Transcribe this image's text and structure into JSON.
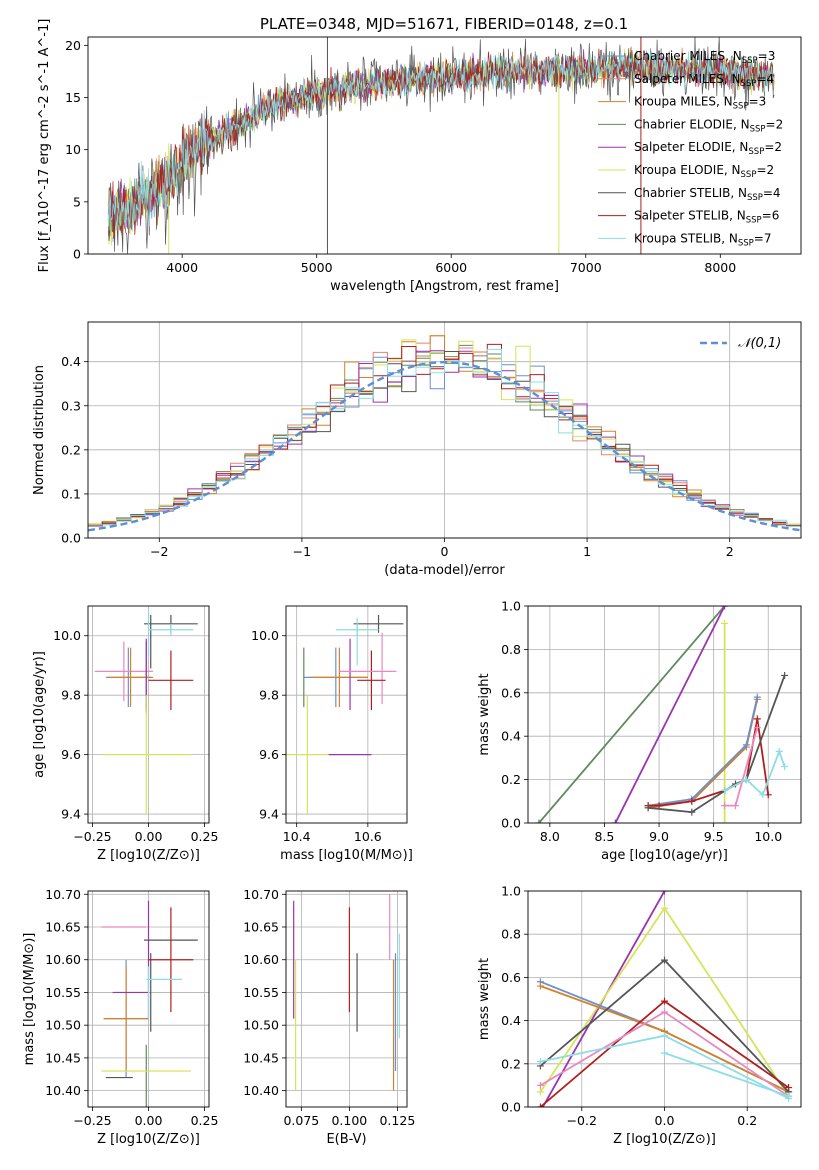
{
  "figure_title": "PLATE=0348, MJD=51671, FIBERID=0148, z=0.1",
  "chart_data": [
    {
      "id": "spectrum",
      "type": "line",
      "title": "PLATE=0348, MJD=51671, FIBERID=0148, z=0.1",
      "xlabel": "wavelength [Angstrom, rest frame]",
      "ylabel": "Flux [f_λ10^-17 erg cm^-2 s^-1 A^-1]",
      "xlim": [
        3300,
        8600
      ],
      "ylim": [
        0,
        20.8
      ],
      "xticks": [
        4000,
        5000,
        6000,
        7000,
        8000
      ],
      "yticks": [
        0,
        5,
        10,
        15,
        20
      ],
      "grid": false,
      "legend_position": "top-right",
      "continuum_x": [
        3450,
        3600,
        3800,
        3900,
        4000,
        4100,
        4300,
        4500,
        4700,
        4900,
        5100,
        5300,
        5500,
        5700,
        6000,
        6300,
        6600,
        6900,
        7200,
        7500,
        7800,
        8100,
        8400
      ],
      "continuum_y": [
        3.5,
        4.5,
        6.0,
        7.5,
        9.0,
        10.0,
        11.5,
        13.0,
        14.5,
        15.2,
        15.7,
        16.1,
        16.4,
        16.7,
        17.0,
        17.3,
        17.6,
        17.7,
        17.8,
        17.8,
        17.6,
        17.4,
        17.0
      ],
      "series": [
        {
          "name": "Chabrier MILES, N_SSP=3",
          "label_main": "Chabrier MILES, N",
          "label_sub": "SSP",
          "label_tail": "=3",
          "color": "#6b8fcf"
        },
        {
          "name": "Salpeter MILES, N_SSP=4",
          "label_main": "Salpeter MILES, N",
          "label_sub": "SSP",
          "label_tail": "=4",
          "color": "#e8836f"
        },
        {
          "name": "Kroupa MILES, N_SSP=3",
          "label_main": "Kroupa MILES, N",
          "label_sub": "SSP",
          "label_tail": "=3",
          "color": "#d4822a"
        },
        {
          "name": "Chabrier ELODIE, N_SSP=2",
          "label_main": "Chabrier ELODIE, N",
          "label_sub": "SSP",
          "label_tail": "=2",
          "color": "#5f8a5f"
        },
        {
          "name": "Salpeter ELODIE, N_SSP=2",
          "label_main": "Salpeter ELODIE, N",
          "label_sub": "SSP",
          "label_tail": "=2",
          "color": "#9b34b0"
        },
        {
          "name": "Kroupa ELODIE, N_SSP=2",
          "label_main": "Kroupa ELODIE, N",
          "label_sub": "SSP",
          "label_tail": "=2",
          "color": "#d6e45a"
        },
        {
          "name": "Chabrier STELIB, N_SSP=4",
          "label_main": "Chabrier STELIB, N",
          "label_sub": "SSP",
          "label_tail": "=4",
          "color": "#555555"
        },
        {
          "name": "Salpeter STELIB, N_SSP=6",
          "label_main": "Salpeter STELIB, N",
          "label_sub": "SSP",
          "label_tail": "=6",
          "color": "#b01e1e"
        },
        {
          "name": "Kroupa STELIB, N_SSP=7",
          "label_main": "Kroupa STELIB, N",
          "label_sub": "SSP",
          "label_tail": "=7",
          "color": "#8cdde6"
        }
      ],
      "spikes": [
        {
          "x": 5080,
          "ymin": 0,
          "ymax": 20.8,
          "color": "#555555"
        },
        {
          "x": 6800,
          "ymin": 0,
          "ymax": 19,
          "color": "#d6e45a"
        },
        {
          "x": 7410,
          "ymin": 0,
          "ymax": 20.8,
          "color": "#b01e1e"
        },
        {
          "x": 3900,
          "ymin": 0,
          "ymax": 6,
          "color": "#d6e45a"
        }
      ]
    },
    {
      "id": "residuals",
      "type": "histogram",
      "xlabel": "(data-model)/error",
      "ylabel": "Normed distribution",
      "xlim": [
        -2.5,
        2.5
      ],
      "ylim": [
        0,
        0.49
      ],
      "xticks": [
        -2,
        -1,
        0,
        1,
        2
      ],
      "yticks": [
        0.0,
        0.1,
        0.2,
        0.3,
        0.4
      ],
      "grid": true,
      "legend_position": "top-right",
      "reference_label": "𝒩(0,1)",
      "reference_color": "#5b8fd6"
    },
    {
      "id": "age_vs_Z",
      "type": "errorbar",
      "xlabel": "Z [log10(Z/Z⊙)]",
      "ylabel": "age [log10(age/yr)]",
      "xlim": [
        -0.27,
        0.27
      ],
      "ylim": [
        9.37,
        10.1
      ],
      "xticks": [
        -0.25,
        0.0,
        0.25
      ],
      "xtick_labels": [
        "−0.25",
        "0.00",
        "0.25"
      ],
      "yticks": [
        9.4,
        9.6,
        9.8,
        10.0
      ],
      "grid": true,
      "points": [
        {
          "x": -0.09,
          "xerr": 0.1,
          "y": 9.86,
          "yerr": 0.1,
          "color": "#6b8fcf"
        },
        {
          "x": -0.11,
          "xerr": 0.13,
          "y": 9.88,
          "yerr": 0.1,
          "color": "#e889c0"
        },
        {
          "x": -0.08,
          "xerr": 0.1,
          "y": 9.86,
          "yerr": 0.1,
          "color": "#d4822a"
        },
        {
          "x": -0.01,
          "xerr": 0.0,
          "y": 9.86,
          "yerr": 0.12,
          "color": "#5f8a5f"
        },
        {
          "x": -0.01,
          "xerr": 0.0,
          "y": 9.87,
          "yerr": 0.12,
          "color": "#9b34b0"
        },
        {
          "x": -0.01,
          "xerr": 0.2,
          "y": 9.6,
          "yerr": 0.2,
          "color": "#d6e45a"
        },
        {
          "x": 0.0,
          "xerr": 0.0,
          "y": 9.6,
          "yerr": 0.0,
          "color": "#555555"
        },
        {
          "x": 0.1,
          "xerr": 0.12,
          "y": 10.04,
          "yerr": 0.03,
          "color": "#555555"
        },
        {
          "x": 0.01,
          "xerr": 0.0,
          "y": 9.98,
          "yerr": 0.09,
          "color": "#555555"
        },
        {
          "x": 0.1,
          "xerr": 0.1,
          "y": 9.85,
          "yerr": 0.1,
          "color": "#b01e1e"
        },
        {
          "x": 0.1,
          "xerr": 0.1,
          "y": 10.02,
          "yerr": 0.02,
          "color": "#8cdde6"
        },
        {
          "x": 0.0,
          "xerr": 0.0,
          "y": 10.0,
          "yerr": 0.08,
          "color": "#8cdde6"
        }
      ]
    },
    {
      "id": "age_vs_mass",
      "type": "errorbar",
      "xlabel": "mass [log10(M/M⊙)]",
      "ylabel": "",
      "xlim": [
        10.37,
        10.71
      ],
      "ylim": [
        9.37,
        10.1
      ],
      "xticks": [
        10.4,
        10.6
      ],
      "xtick_labels": [
        "10.4",
        "10.6"
      ],
      "yticks": [
        9.4,
        9.6,
        9.8,
        10.0
      ],
      "grid": true,
      "points": [
        {
          "x": 10.51,
          "xerr": 0.09,
          "y": 9.86,
          "yerr": 0.1,
          "color": "#6b8fcf"
        },
        {
          "x": 10.52,
          "xerr": 0.08,
          "y": 9.86,
          "yerr": 0.1,
          "color": "#d4822a"
        },
        {
          "x": 10.42,
          "xerr": 0.0,
          "y": 9.86,
          "yerr": 0.1,
          "color": "#5f8a5f"
        },
        {
          "x": 10.55,
          "xerr": 0.0,
          "y": 9.87,
          "yerr": 0.12,
          "color": "#9b34b0"
        },
        {
          "x": 10.43,
          "xerr": 0.06,
          "y": 9.6,
          "yerr": 0.2,
          "color": "#d6e45a"
        },
        {
          "x": 10.55,
          "xerr": 0.06,
          "y": 9.6,
          "yerr": 0.0,
          "color": "#9b34b0"
        },
        {
          "x": 10.63,
          "xerr": 0.07,
          "y": 10.04,
          "yerr": 0.03,
          "color": "#555555"
        },
        {
          "x": 10.64,
          "xerr": 0.0,
          "y": 9.89,
          "yerr": 0.12,
          "color": "#e889c0"
        },
        {
          "x": 10.61,
          "xerr": 0.04,
          "y": 9.85,
          "yerr": 0.1,
          "color": "#b01e1e"
        },
        {
          "x": 10.57,
          "xerr": 0.06,
          "y": 10.02,
          "yerr": 0.02,
          "color": "#8cdde6"
        },
        {
          "x": 10.57,
          "xerr": 0.0,
          "y": 9.98,
          "yerr": 0.08,
          "color": "#8cdde6"
        },
        {
          "x": 10.6,
          "xerr": 0.08,
          "y": 9.88,
          "yerr": 0.0,
          "color": "#e889c0"
        }
      ]
    },
    {
      "id": "massweight_vs_age",
      "type": "line",
      "xlabel": "age [log10(age/yr)]",
      "ylabel": "mass weight",
      "xlim": [
        7.8,
        10.3
      ],
      "ylim": [
        0,
        1.0
      ],
      "xticks": [
        8.0,
        8.5,
        9.0,
        9.5,
        10.0
      ],
      "yticks": [
        0.0,
        0.2,
        0.4,
        0.6,
        0.8,
        1.0
      ],
      "grid": true,
      "series": [
        {
          "color": "#5f8a5f",
          "x": [
            7.9,
            9.6
          ],
          "y": [
            0.0,
            1.0
          ]
        },
        {
          "color": "#9b34b0",
          "x": [
            8.6,
            9.6
          ],
          "y": [
            0.0,
            1.0
          ]
        },
        {
          "color": "#d6e45a",
          "x": [
            9.6,
            9.6
          ],
          "y": [
            0.0,
            0.92
          ]
        },
        {
          "color": "#d4822a",
          "x": [
            8.9,
            9.3,
            9.8,
            9.9
          ],
          "y": [
            0.07,
            0.1,
            0.35,
            0.57
          ]
        },
        {
          "color": "#6b8fcf",
          "x": [
            8.9,
            9.3,
            9.8,
            9.9
          ],
          "y": [
            0.08,
            0.11,
            0.36,
            0.58
          ]
        },
        {
          "color": "#b01e1e",
          "x": [
            8.9,
            9.0,
            9.3,
            9.6,
            9.8,
            9.9,
            10.0
          ],
          "y": [
            0.08,
            0.08,
            0.1,
            0.15,
            0.2,
            0.48,
            0.13
          ]
        },
        {
          "color": "#555555",
          "x": [
            8.9,
            9.3,
            9.7,
            9.8,
            10.15
          ],
          "y": [
            0.07,
            0.05,
            0.18,
            0.2,
            0.68
          ]
        },
        {
          "color": "#e889c0",
          "x": [
            9.6,
            9.7,
            9.9
          ],
          "y": [
            0.08,
            0.08,
            0.44
          ]
        },
        {
          "color": "#8cdde6",
          "x": [
            9.6,
            9.8,
            9.95,
            10.1,
            10.15
          ],
          "y": [
            0.15,
            0.2,
            0.13,
            0.33,
            0.26
          ]
        }
      ]
    },
    {
      "id": "mass_vs_Z",
      "type": "errorbar",
      "xlabel": "Z [log10(Z/Z⊙)]",
      "ylabel": "mass [log10(M/M⊙)]",
      "xlim": [
        -0.27,
        0.27
      ],
      "ylim": [
        10.375,
        10.705
      ],
      "xticks": [
        -0.25,
        0.0,
        0.25
      ],
      "xtick_labels": [
        "−0.25",
        "0.00",
        "0.25"
      ],
      "yticks": [
        10.4,
        10.45,
        10.5,
        10.55,
        10.6,
        10.65,
        10.7
      ],
      "grid": true,
      "points": [
        {
          "x": -0.1,
          "xerr": 0.1,
          "y": 10.51,
          "yerr": 0.09,
          "color": "#6b8fcf"
        },
        {
          "x": -0.11,
          "xerr": 0.1,
          "y": 10.65,
          "yerr": 0.0,
          "color": "#e889c0"
        },
        {
          "x": -0.1,
          "xerr": 0.1,
          "y": 10.51,
          "yerr": 0.08,
          "color": "#d4822a"
        },
        {
          "x": -0.01,
          "xerr": 0.0,
          "y": 10.42,
          "yerr": 0.05,
          "color": "#5f8a5f"
        },
        {
          "x": -0.08,
          "xerr": 0.08,
          "y": 10.55,
          "yerr": 0.0,
          "color": "#9b34b0"
        },
        {
          "x": 0.0,
          "xerr": 0.0,
          "y": 10.6,
          "yerr": 0.09,
          "color": "#9b34b0"
        },
        {
          "x": -0.01,
          "xerr": 0.2,
          "y": 10.43,
          "yerr": 0.0,
          "color": "#d6e45a"
        },
        {
          "x": -0.13,
          "xerr": 0.06,
          "y": 10.42,
          "yerr": 0.0,
          "color": "#555555"
        },
        {
          "x": 0.1,
          "xerr": 0.12,
          "y": 10.63,
          "yerr": 0.0,
          "color": "#555555"
        },
        {
          "x": 0.01,
          "xerr": 0.0,
          "y": 10.55,
          "yerr": 0.06,
          "color": "#555555"
        },
        {
          "x": 0.1,
          "xerr": 0.1,
          "y": 10.6,
          "yerr": 0.08,
          "color": "#b01e1e"
        },
        {
          "x": 0.07,
          "xerr": 0.08,
          "y": 10.57,
          "yerr": 0.0,
          "color": "#8cdde6"
        },
        {
          "x": 0.0,
          "xerr": 0.0,
          "y": 10.55,
          "yerr": 0.04,
          "color": "#8cdde6"
        }
      ]
    },
    {
      "id": "mass_vs_ebv",
      "type": "errorbar",
      "xlabel": "E(B-V)",
      "ylabel": "",
      "xlim": [
        0.067,
        0.13
      ],
      "ylim": [
        10.375,
        10.705
      ],
      "xticks": [
        0.075,
        0.1,
        0.125
      ],
      "xtick_labels": [
        "0.075",
        "0.100",
        "0.125"
      ],
      "yticks": [
        10.4,
        10.45,
        10.5,
        10.55,
        10.6,
        10.65,
        10.7
      ],
      "grid": true,
      "points": [
        {
          "x": 0.071,
          "xerr": 0.0,
          "y": 10.6,
          "yerr": 0.09,
          "color": "#9b34b0"
        },
        {
          "x": 0.072,
          "xerr": 0.0,
          "y": 10.5,
          "yerr": 0.1,
          "color": "#d6e45a"
        },
        {
          "x": 0.1,
          "xerr": 0.0,
          "y": 10.6,
          "yerr": 0.08,
          "color": "#b01e1e"
        },
        {
          "x": 0.104,
          "xerr": 0.0,
          "y": 10.55,
          "yerr": 0.06,
          "color": "#555555"
        },
        {
          "x": 0.121,
          "xerr": 0.0,
          "y": 10.65,
          "yerr": 0.05,
          "color": "#e889c0"
        },
        {
          "x": 0.123,
          "xerr": 0.0,
          "y": 10.5,
          "yerr": 0.1,
          "color": "#d4822a"
        },
        {
          "x": 0.124,
          "xerr": 0.0,
          "y": 10.52,
          "yerr": 0.09,
          "color": "#6b8fcf"
        },
        {
          "x": 0.126,
          "xerr": 0.0,
          "y": 10.56,
          "yerr": 0.08,
          "color": "#8cdde6"
        }
      ]
    },
    {
      "id": "massweight_vs_Z",
      "type": "line",
      "xlabel": "Z [log10(Z/Z⊙)]",
      "ylabel": "mass weight",
      "xlim": [
        -0.33,
        0.33
      ],
      "ylim": [
        0,
        1.0
      ],
      "xticks": [
        -0.2,
        0.0,
        0.2
      ],
      "xtick_labels": [
        "−0.2",
        "0.0",
        "0.2"
      ],
      "yticks": [
        0.0,
        0.2,
        0.4,
        0.6,
        0.8,
        1.0
      ],
      "grid": true,
      "series": [
        {
          "color": "#9b34b0",
          "x": [
            -0.3,
            0.0
          ],
          "y": [
            -0.02,
            1.0
          ]
        },
        {
          "color": "#d6e45a",
          "x": [
            -0.3,
            0.0,
            0.3
          ],
          "y": [
            0.07,
            0.92,
            0.05
          ]
        },
        {
          "color": "#6b8fcf",
          "x": [
            -0.3,
            0.0,
            0.3
          ],
          "y": [
            0.58,
            0.35,
            0.07
          ]
        },
        {
          "color": "#d4822a",
          "x": [
            -0.3,
            0.0,
            0.3
          ],
          "y": [
            0.56,
            0.35,
            0.07
          ]
        },
        {
          "color": "#555555",
          "x": [
            -0.3,
            0.0,
            0.3
          ],
          "y": [
            0.19,
            0.68,
            0.07
          ]
        },
        {
          "color": "#b01e1e",
          "x": [
            -0.3,
            0.0,
            0.3
          ],
          "y": [
            0.0,
            0.49,
            0.09
          ]
        },
        {
          "color": "#e889c0",
          "x": [
            -0.3,
            0.0,
            0.3
          ],
          "y": [
            0.1,
            0.44,
            0.05
          ]
        },
        {
          "color": "#8cdde6",
          "x": [
            -0.3,
            0.0,
            0.3
          ],
          "y": [
            0.21,
            0.33,
            0.04
          ]
        },
        {
          "color": "#8cdde6",
          "x": [
            0.0,
            0.3
          ],
          "y": [
            0.25,
            0.05
          ]
        }
      ]
    }
  ]
}
